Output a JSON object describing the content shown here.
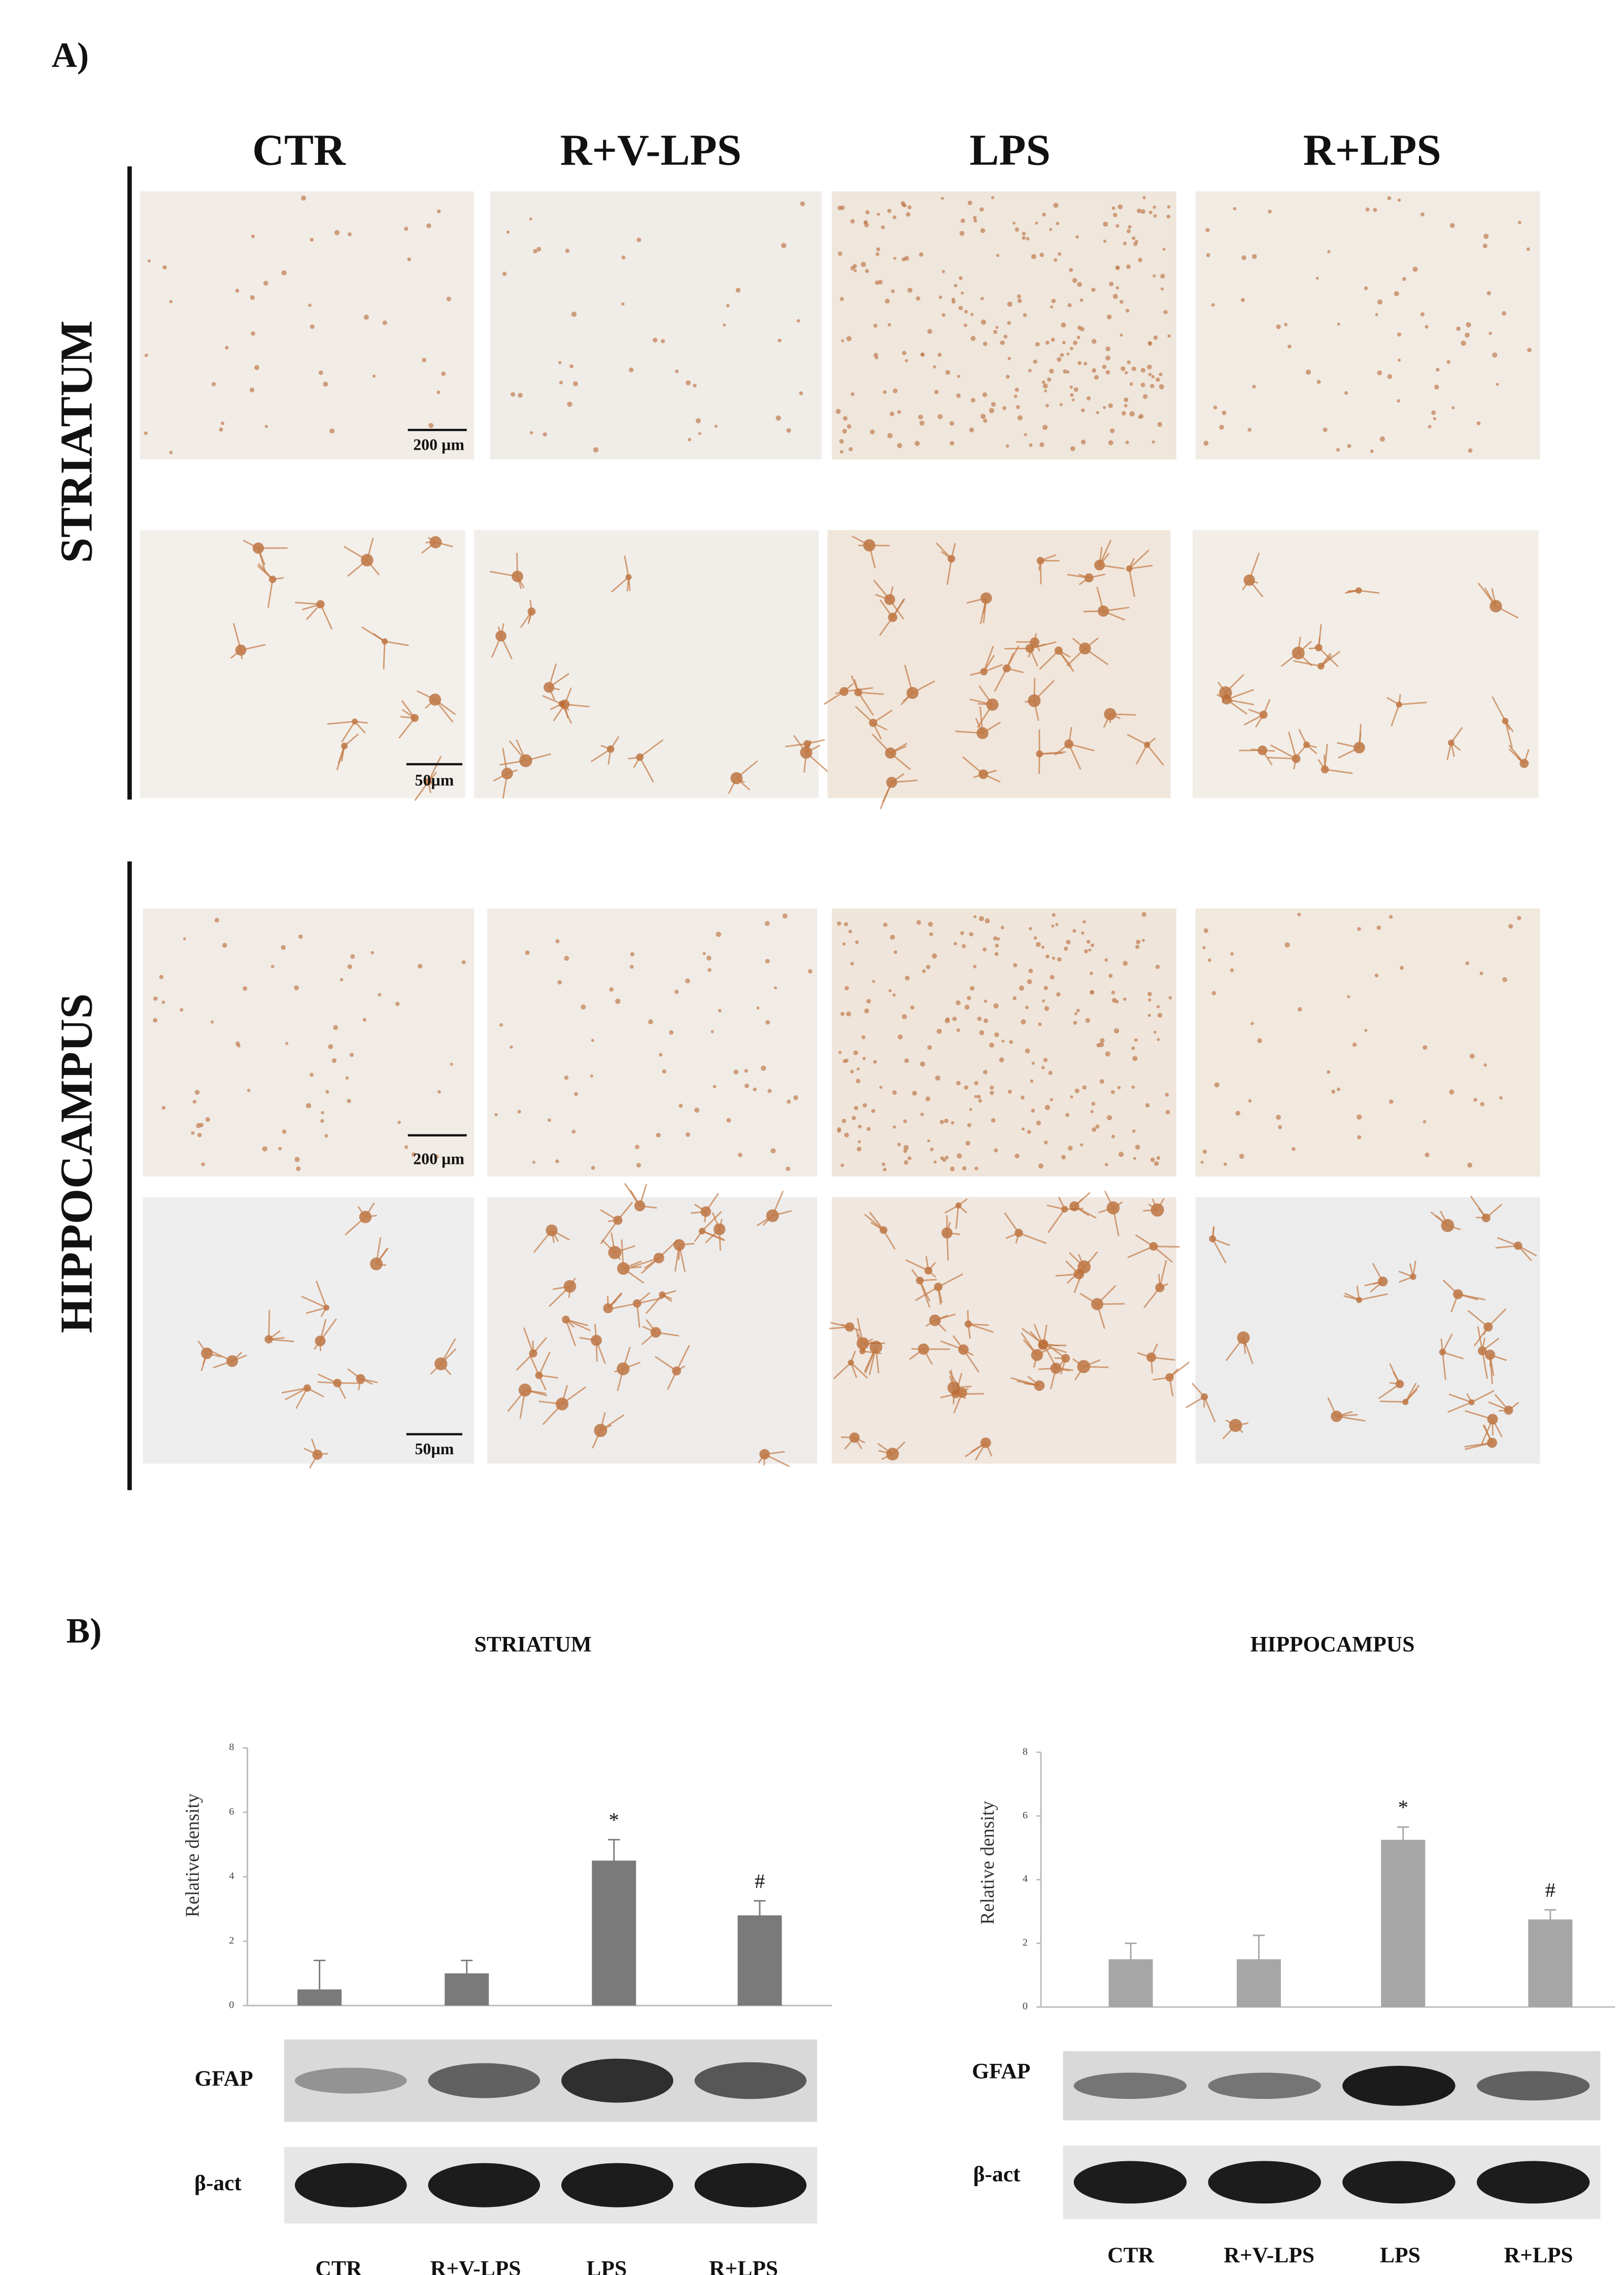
{
  "panel_a": {
    "label": "A)",
    "columns": [
      "CTR",
      "R+V-LPS",
      "LPS",
      "R+LPS"
    ],
    "rows": [
      "STRIATUM",
      "HIPPOCAMPUS"
    ],
    "scale_bars": [
      "200 µm",
      "50µm",
      "200 µm",
      "50µm"
    ]
  },
  "panel_b": {
    "label": "B)",
    "blot_labels": [
      "GFAP",
      "β-act"
    ]
  },
  "chart_data": [
    {
      "type": "bar",
      "title": "STRIATUM",
      "y_label": "Relative density",
      "categories": [
        "CTR",
        "R+V-LPS",
        "LPS",
        "R+LPS"
      ],
      "values": [
        0.5,
        1.0,
        4.5,
        2.8
      ],
      "errors": [
        0.9,
        0.4,
        0.65,
        0.45
      ],
      "annotations": [
        null,
        null,
        "*",
        "#"
      ],
      "color": "#7a7a7a",
      "ylim": [
        0,
        8
      ],
      "yticks": [
        0,
        2,
        4,
        6,
        8
      ]
    },
    {
      "type": "bar",
      "title": "HIPPOCAMPUS",
      "y_label": "Relative density",
      "categories": [
        "CTR",
        "R+V-LPS",
        "LPS",
        "R+LPS"
      ],
      "values": [
        1.5,
        1.5,
        5.25,
        2.75
      ],
      "errors": [
        0.5,
        0.75,
        0.4,
        0.3
      ],
      "annotations": [
        null,
        null,
        "*",
        "#"
      ],
      "color": "#a6a6a6",
      "ylim": [
        0,
        8
      ],
      "yticks": [
        0,
        2,
        4,
        6,
        8
      ]
    }
  ]
}
